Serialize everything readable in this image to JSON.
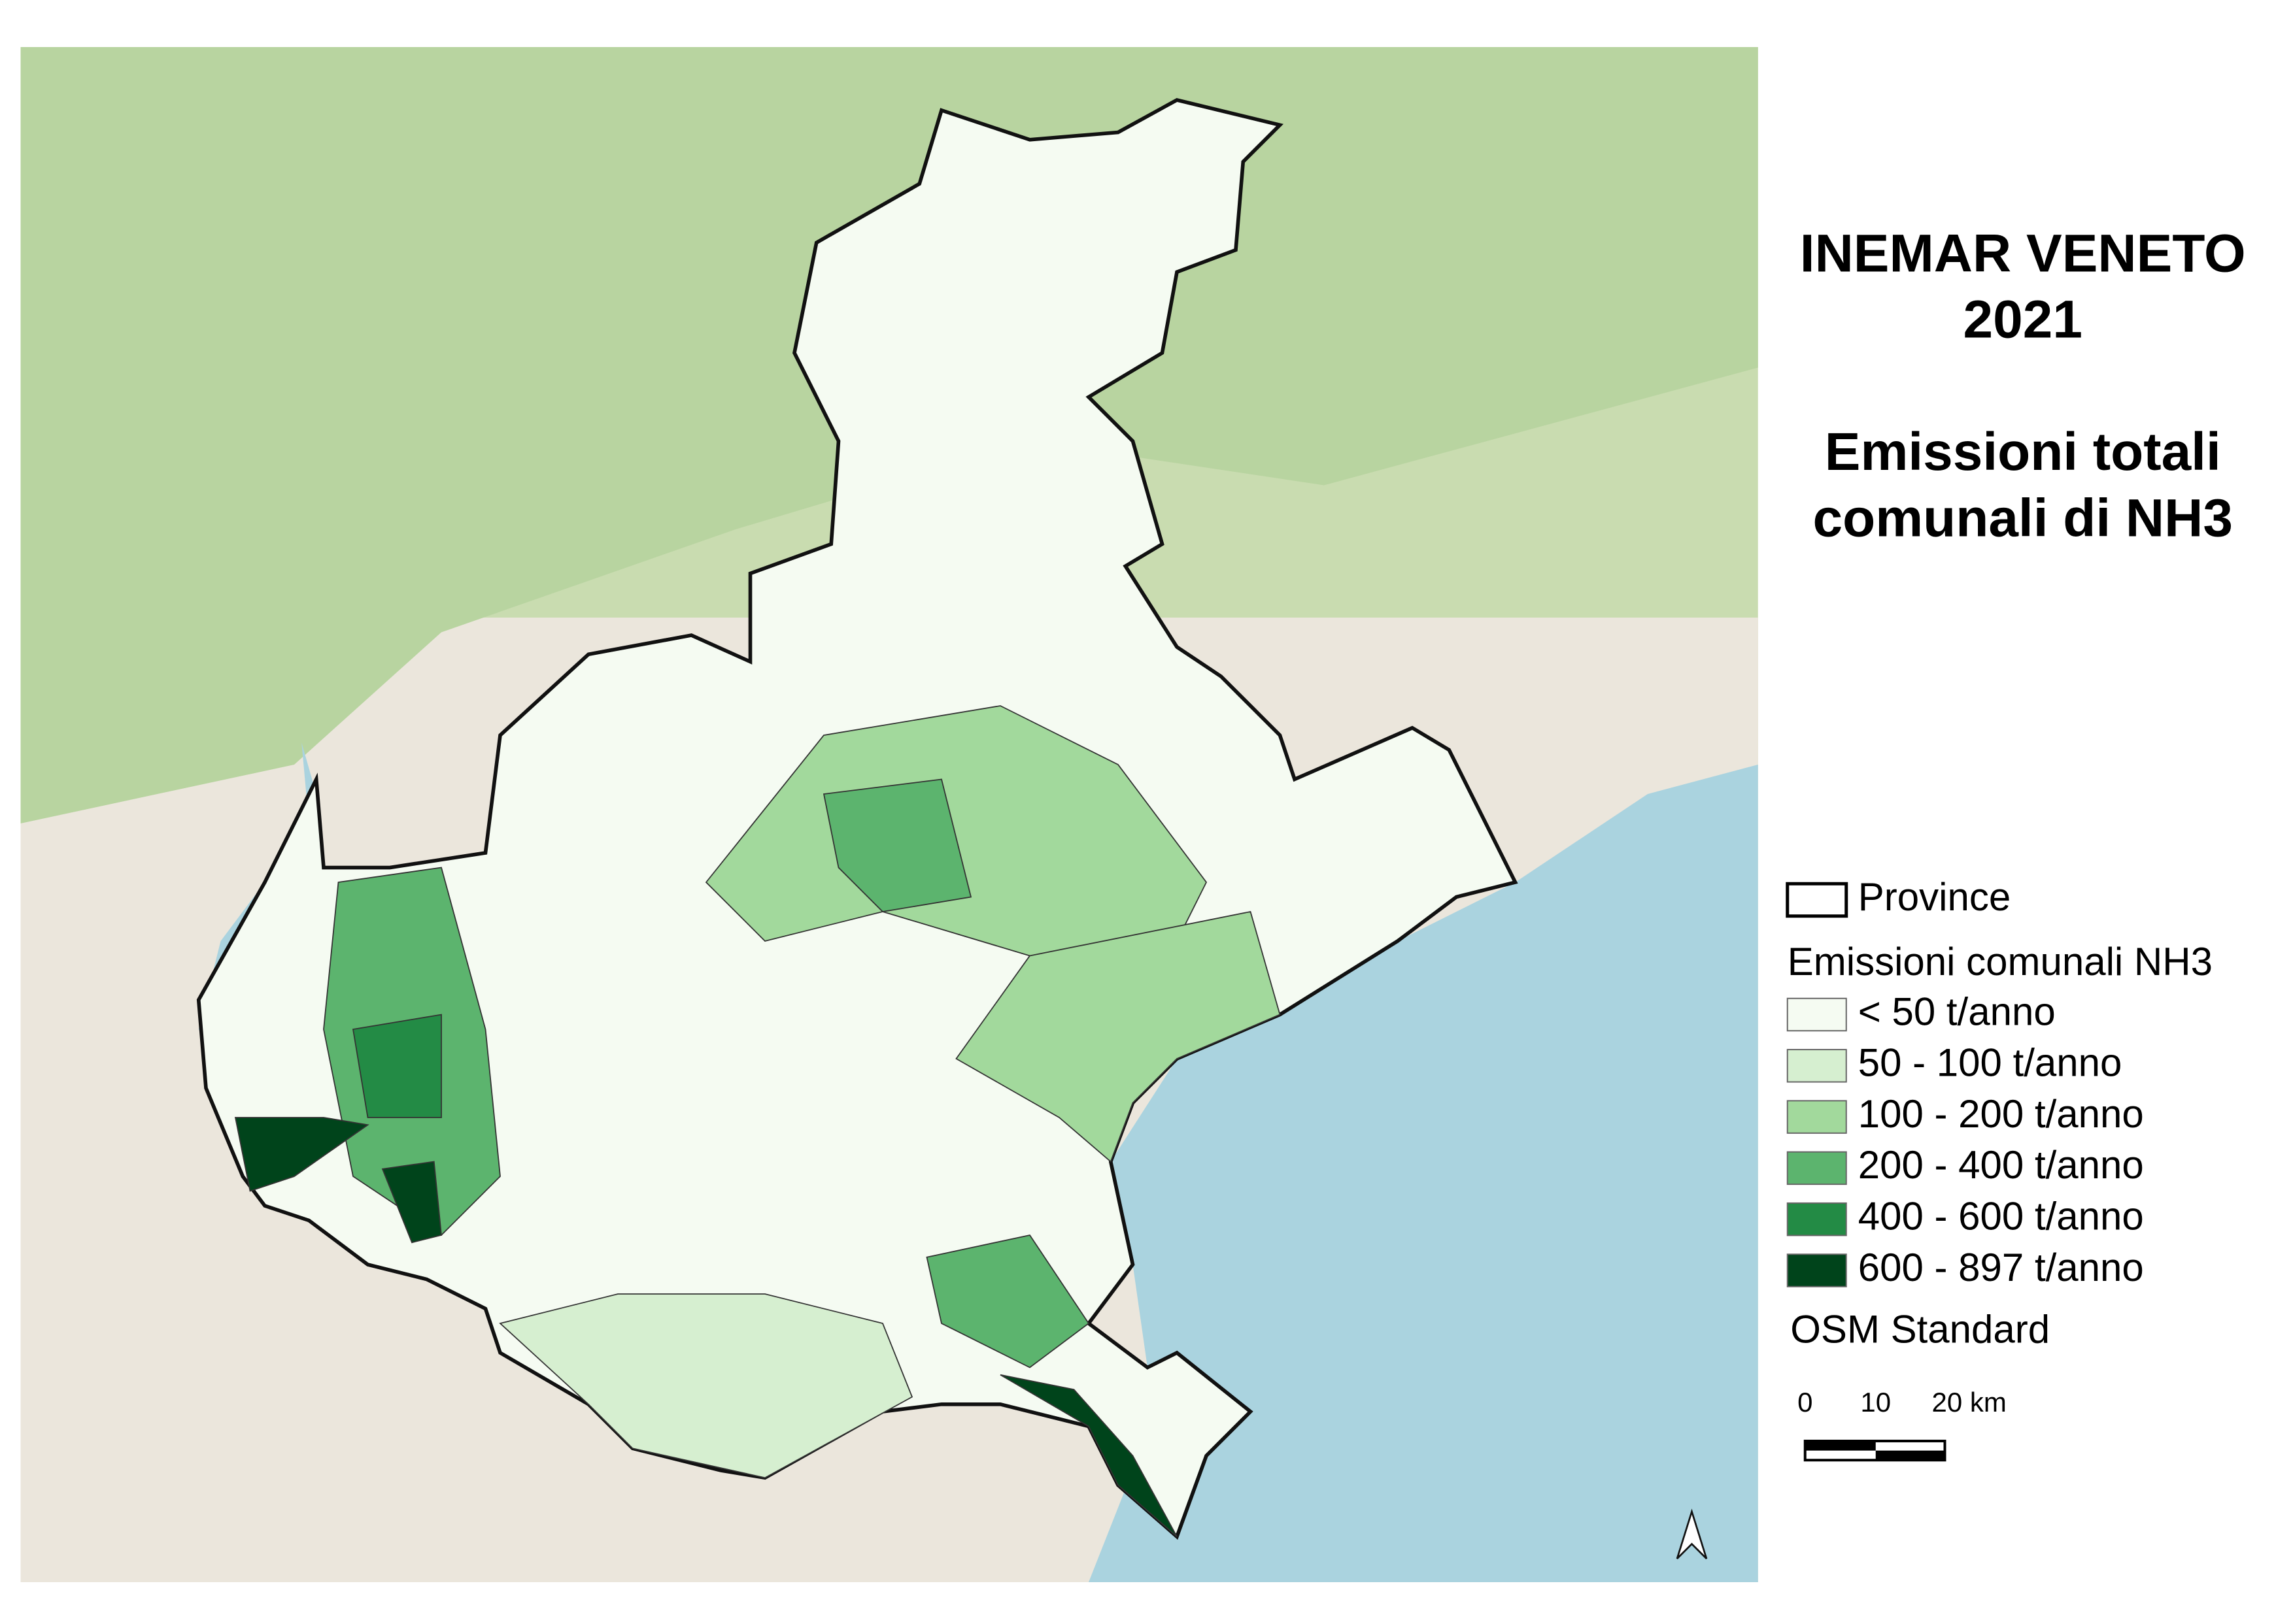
{
  "title": [
    "INEMAR VENETO",
    "2021",
    "Emissioni totali",
    "comunali di NH3"
  ],
  "legend": {
    "province_label": "Province",
    "layer_title": "Emissioni comunali NH3",
    "classes": [
      {
        "label": "< 50 t/anno",
        "color": "#f5fbf2"
      },
      {
        "label": "50 - 100 t/anno",
        "color": "#d6efd0"
      },
      {
        "label": "100 - 200 t/anno",
        "color": "#a2d99c"
      },
      {
        "label": "200 - 400 t/anno",
        "color": "#5cb46e"
      },
      {
        "label": "400 - 600 t/anno",
        "color": "#238b45"
      },
      {
        "label": "600 - 897 t/anno",
        "color": "#00441b"
      }
    ],
    "basemap": "OSM Standard"
  },
  "scale_bar": [
    "0",
    "10",
    "20 km"
  ]
}
